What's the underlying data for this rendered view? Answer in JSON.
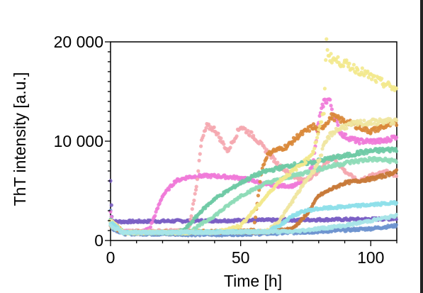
{
  "chart_data": {
    "type": "scatter",
    "xlabel": "Time [h]",
    "ylabel": "ThT intensity [a.u.]",
    "xlim": [
      0,
      110
    ],
    "ylim": [
      0,
      20000
    ],
    "xticks": [
      0,
      50,
      100
    ],
    "yticks": [
      0,
      10000,
      20000
    ],
    "xtick_labels": [
      "0",
      "50",
      "100"
    ],
    "ytick_labels": [
      "0",
      "10 000",
      "20 000"
    ],
    "grid": false,
    "legend": "none",
    "series": [
      {
        "color": "#7b5fc4",
        "x": [
          0,
          0.5,
          1,
          5,
          20,
          40,
          60,
          80,
          100,
          110
        ],
        "y": [
          6000,
          2500,
          1900,
          1900,
          1950,
          2000,
          2050,
          2100,
          2150,
          2200
        ]
      },
      {
        "color": "#6e93cf",
        "x": [
          0,
          1,
          5,
          20,
          40,
          60,
          80,
          100,
          110
        ],
        "y": [
          3000,
          1200,
          700,
          650,
          600,
          700,
          900,
          1200,
          1500
        ]
      },
      {
        "color": "#f07ad8",
        "x": [
          0,
          1,
          5,
          12,
          15,
          20,
          25,
          30,
          35,
          40,
          45,
          50,
          55,
          60,
          65,
          70,
          75,
          78,
          80,
          82,
          84,
          86,
          88,
          90,
          95,
          100,
          105,
          110
        ],
        "y": [
          3000,
          1300,
          900,
          900,
          1200,
          4500,
          6000,
          6400,
          6500,
          6500,
          6400,
          6300,
          6000,
          5600,
          5500,
          5500,
          6000,
          8000,
          12000,
          14000,
          14200,
          12500,
          11000,
          10500,
          10000,
          10000,
          10000,
          10500
        ]
      },
      {
        "color": "#f5a9b0",
        "x": [
          0,
          5,
          30,
          33,
          35,
          37,
          40,
          45,
          50,
          55,
          60,
          65,
          70,
          75,
          80,
          85,
          90,
          95,
          100,
          105,
          110
        ],
        "y": [
          2000,
          900,
          1000,
          5500,
          10000,
          11500,
          11200,
          9000,
          11500,
          10500,
          9000,
          7500,
          6500,
          6000,
          7000,
          8500,
          7000,
          6000,
          6500,
          7000,
          6500
        ]
      },
      {
        "color": "#d9883a",
        "x": [
          0,
          5,
          40,
          55,
          58,
          60,
          62,
          65,
          68,
          70,
          72,
          75,
          78,
          80,
          85,
          90,
          95,
          100,
          105,
          110
        ],
        "y": [
          2000,
          800,
          900,
          1000,
          7000,
          8500,
          9000,
          9200,
          9500,
          10000,
          10500,
          11000,
          11500,
          11000,
          12500,
          12000,
          11500,
          11000,
          11500,
          11800
        ]
      },
      {
        "color": "#c87a3a",
        "x": [
          0,
          5,
          60,
          70,
          75,
          80,
          85,
          90,
          95,
          100,
          105,
          110
        ],
        "y": [
          1500,
          800,
          900,
          1200,
          2500,
          4500,
          5200,
          5800,
          6000,
          6200,
          6500,
          7000
        ]
      },
      {
        "color": "#6fcaa5",
        "x": [
          0,
          5,
          25,
          28,
          30,
          35,
          40,
          45,
          50,
          55,
          60,
          65,
          70,
          75,
          80,
          85,
          90,
          95,
          100,
          105,
          110
        ],
        "y": [
          2000,
          800,
          800,
          1000,
          1500,
          3000,
          4200,
          5000,
          5800,
          6500,
          7000,
          7300,
          7600,
          7800,
          8000,
          8300,
          8500,
          8800,
          9000,
          9100,
          9200
        ]
      },
      {
        "color": "#8fdcb8",
        "x": [
          0,
          5,
          30,
          40,
          50,
          60,
          70,
          80,
          90,
          100,
          110
        ],
        "y": [
          2000,
          800,
          800,
          2500,
          4500,
          5800,
          6500,
          7200,
          7800,
          8200,
          8000
        ]
      },
      {
        "color": "#f3e98d",
        "x": [
          0,
          5,
          40,
          50,
          55,
          60,
          65,
          70,
          75,
          78,
          80,
          82,
          83,
          84,
          86,
          90,
          95,
          100,
          105,
          110
        ],
        "y": [
          2000,
          800,
          800,
          1500,
          3000,
          4500,
          6000,
          7000,
          8000,
          9000,
          11000,
          13000,
          20000,
          18500,
          18200,
          17800,
          17200,
          16500,
          15800,
          15200
        ]
      },
      {
        "color": "#f0e6a0",
        "x": [
          0,
          5,
          60,
          65,
          70,
          75,
          78,
          80,
          82,
          84,
          86,
          90,
          95,
          100,
          105,
          110
        ],
        "y": [
          2000,
          800,
          900,
          2000,
          4000,
          6000,
          7000,
          8000,
          9500,
          10500,
          11000,
          11500,
          11800,
          11900,
          12000,
          12000
        ]
      },
      {
        "color": "#8fe0ea",
        "x": [
          0,
          5,
          60,
          65,
          70,
          75,
          80,
          85,
          90,
          95,
          100,
          105,
          110
        ],
        "y": [
          1800,
          800,
          900,
          1500,
          2500,
          3000,
          3200,
          3300,
          3400,
          3500,
          3600,
          3700,
          3800
        ]
      },
      {
        "color": "#a7e4e8",
        "x": [
          0,
          5,
          70,
          80,
          90,
          100,
          110
        ],
        "y": [
          1500,
          800,
          900,
          1200,
          1500,
          2000,
          2500
        ]
      }
    ]
  }
}
